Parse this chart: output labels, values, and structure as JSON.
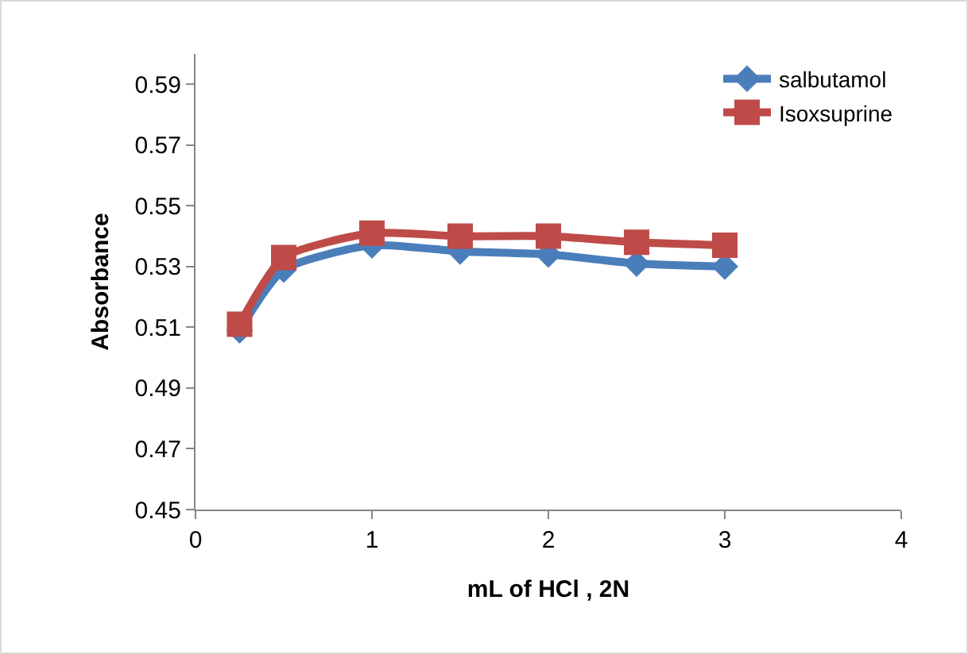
{
  "chart_data": {
    "type": "line",
    "xlabel": "mL of HCl , 2N",
    "ylabel": "Absorbance",
    "x": [
      0.25,
      0.5,
      1,
      1.5,
      2,
      2.5,
      3
    ],
    "series": [
      {
        "name": "salbutamol",
        "color": "#4a7ebb",
        "marker": "diamond",
        "values": [
          0.509,
          0.529,
          0.537,
          0.535,
          0.534,
          0.531,
          0.53
        ]
      },
      {
        "name": "Isoxsuprine",
        "color": "#be4b48",
        "marker": "square",
        "values": [
          0.511,
          0.533,
          0.541,
          0.54,
          0.54,
          0.538,
          0.537
        ]
      }
    ],
    "xlim": [
      0,
      4
    ],
    "xticks": [
      0,
      1,
      2,
      3,
      4
    ],
    "ylim": [
      0.45,
      0.6
    ],
    "yticks": [
      0.45,
      0.47,
      0.49,
      0.51,
      0.53,
      0.55,
      0.57,
      0.59
    ],
    "grid": false,
    "legend": "top right"
  }
}
